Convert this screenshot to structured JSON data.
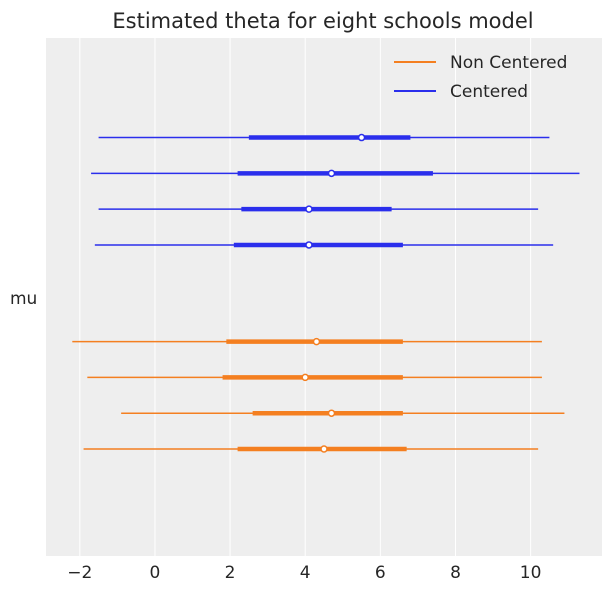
{
  "chart_data": {
    "type": "forest",
    "title": "Estimated theta for eight schools model",
    "ylabel": "mu",
    "xlabel": "",
    "xlim": [
      -2.9,
      11.9
    ],
    "xticks": [
      -2,
      0,
      2,
      4,
      6,
      8,
      10
    ],
    "xtick_labels": [
      "−2",
      "0",
      "2",
      "4",
      "6",
      "8",
      "10"
    ],
    "grid": true,
    "legend_position": "top-right",
    "series": [
      {
        "name": "Non Centered",
        "color": "#f47f20",
        "intervals": [
          {
            "hdi_low": -1.9,
            "hdi_high": 10.2,
            "iqr_low": 2.2,
            "iqr_high": 6.7,
            "median": 4.5
          },
          {
            "hdi_low": -0.9,
            "hdi_high": 10.9,
            "iqr_low": 2.6,
            "iqr_high": 6.6,
            "median": 4.7
          },
          {
            "hdi_low": -1.8,
            "hdi_high": 10.3,
            "iqr_low": 1.8,
            "iqr_high": 6.6,
            "median": 4.0
          },
          {
            "hdi_low": -2.2,
            "hdi_high": 10.3,
            "iqr_low": 1.9,
            "iqr_high": 6.6,
            "median": 4.3
          }
        ]
      },
      {
        "name": "Centered",
        "color": "#2a2eec",
        "intervals": [
          {
            "hdi_low": -1.6,
            "hdi_high": 10.6,
            "iqr_low": 2.1,
            "iqr_high": 6.6,
            "median": 4.1
          },
          {
            "hdi_low": -1.5,
            "hdi_high": 10.2,
            "iqr_low": 2.3,
            "iqr_high": 6.3,
            "median": 4.1
          },
          {
            "hdi_low": -1.7,
            "hdi_high": 11.3,
            "iqr_low": 2.2,
            "iqr_high": 7.4,
            "median": 4.7
          },
          {
            "hdi_low": -1.5,
            "hdi_high": 10.5,
            "iqr_low": 2.5,
            "iqr_high": 6.8,
            "median": 5.5
          }
        ]
      }
    ]
  }
}
